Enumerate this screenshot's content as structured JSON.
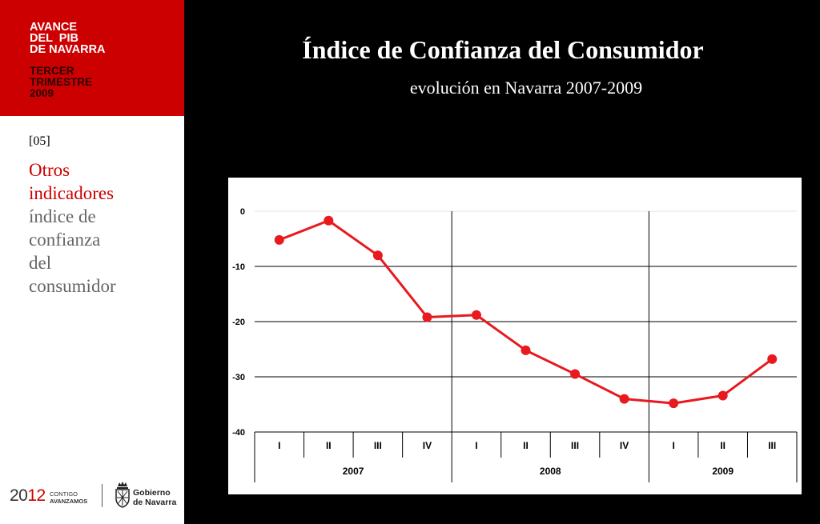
{
  "brand": {
    "title_lines": [
      "AVANCE",
      "DEL  PIB",
      "DE NAVARRA"
    ],
    "period_lines": [
      "TERCER",
      "TRIMESTRE",
      "2009"
    ]
  },
  "section": {
    "number": "[05]",
    "heading_red": [
      "Otros",
      "indicadores"
    ],
    "heading_gray": [
      "índice de",
      "confianza",
      "del",
      "consumidor"
    ]
  },
  "footer": {
    "year_a": "20",
    "year_b": "12",
    "slogan": [
      "CONTIGO",
      "AVANZAMOS"
    ],
    "gov": [
      "Gobierno",
      "de Navarra"
    ]
  },
  "slide": {
    "title": "Índice de Confianza del Consumidor",
    "subtitle": "evolución en Navarra 2007-2009"
  },
  "colors": {
    "accent": "#cc0000",
    "series": "#e8191f"
  },
  "chart_data": {
    "type": "line",
    "title": "",
    "xlabel": "",
    "ylabel": "",
    "ylim": [
      -40,
      0
    ],
    "yticks": [
      0,
      -10,
      -20,
      -30,
      -40
    ],
    "grid": true,
    "categories": [
      "I",
      "II",
      "III",
      "IV",
      "I",
      "II",
      "III",
      "IV",
      "I",
      "II",
      "III"
    ],
    "year_groups": [
      {
        "label": "2007",
        "count": 4
      },
      {
        "label": "2008",
        "count": 4
      },
      {
        "label": "2009",
        "count": 3
      }
    ],
    "series": [
      {
        "values": [
          -5.2,
          -1.7,
          -8.0,
          -19.2,
          -18.8,
          -25.2,
          -29.5,
          -34.0,
          -34.8,
          -33.4,
          -26.8
        ]
      }
    ]
  }
}
